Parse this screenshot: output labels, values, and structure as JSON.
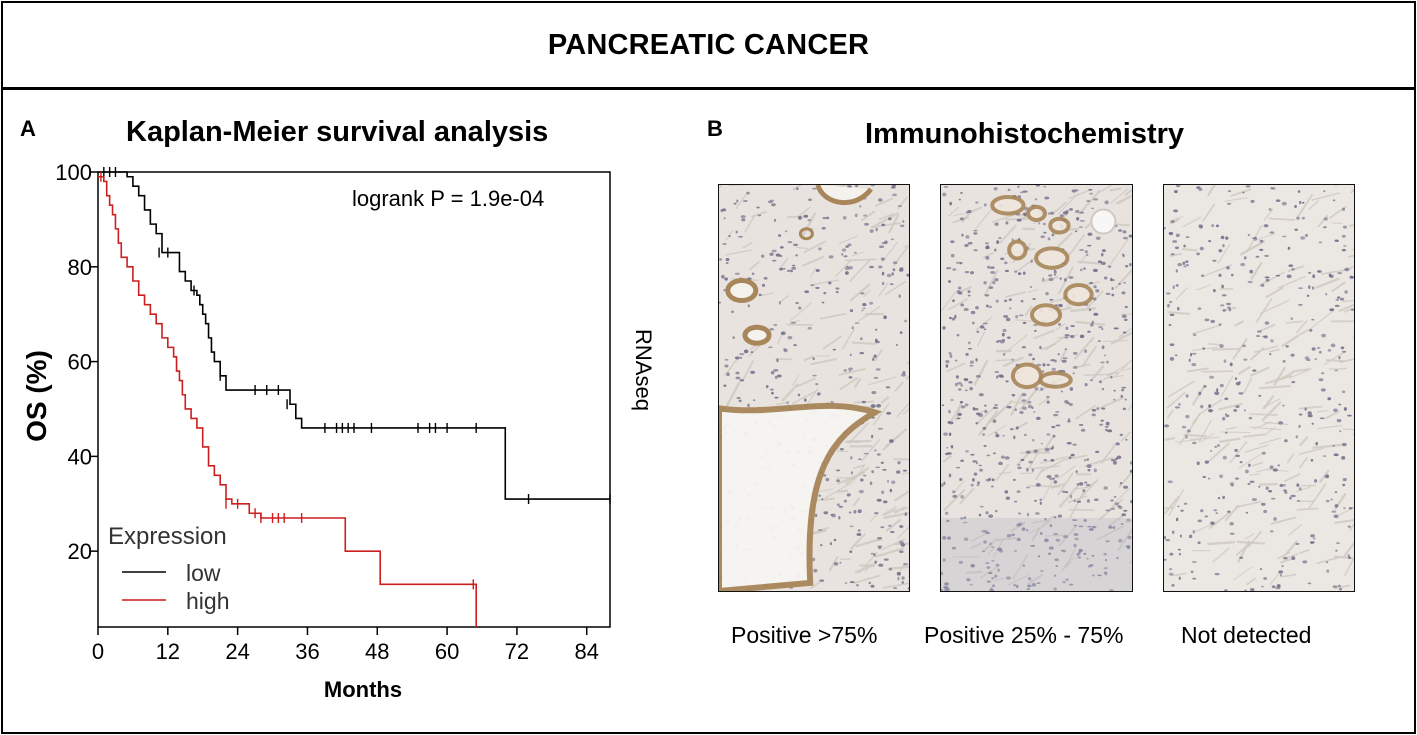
{
  "header": {
    "title": "PANCREATIC CANCER"
  },
  "panel_a": {
    "label": "A",
    "title": "Kaplan-Meier survival analysis"
  },
  "panel_b": {
    "label": "B",
    "title": "Immunohistochemistry",
    "images": [
      {
        "caption": "Positive >75%",
        "stain": "strong"
      },
      {
        "caption": "Positive 25% - 75%",
        "stain": "moderate"
      },
      {
        "caption": "Not detected",
        "stain": "none"
      }
    ]
  },
  "colors": {
    "low": "#000000",
    "high": "#cc1f1f",
    "stain": "#a8865a"
  },
  "chart_data": {
    "type": "line",
    "subtype": "kaplan-meier",
    "title": "Kaplan-Meier survival analysis",
    "xlabel": "Months",
    "ylabel": "OS (%)",
    "side_label": "RNAseq",
    "annotation": "logrank P = 1.9e-04",
    "xlim": [
      0,
      88
    ],
    "ylim": [
      4,
      100
    ],
    "xticks": [
      0,
      12,
      24,
      36,
      48,
      60,
      72,
      84
    ],
    "yticks": [
      20,
      40,
      60,
      80,
      100
    ],
    "legend": {
      "title": "Expression",
      "position": "bottom-left"
    },
    "series": [
      {
        "name": "low",
        "color": "#000000",
        "steps": [
          [
            0,
            100
          ],
          [
            5,
            99
          ],
          [
            6,
            97
          ],
          [
            7,
            95
          ],
          [
            8,
            92
          ],
          [
            9,
            89
          ],
          [
            10,
            87
          ],
          [
            11,
            83
          ],
          [
            13,
            83
          ],
          [
            14,
            79
          ],
          [
            15,
            77
          ],
          [
            16,
            75
          ],
          [
            17,
            74
          ],
          [
            17.5,
            72
          ],
          [
            18,
            70
          ],
          [
            18.5,
            68
          ],
          [
            19,
            65
          ],
          [
            19.5,
            62
          ],
          [
            20,
            60
          ],
          [
            21,
            57
          ],
          [
            22,
            54
          ],
          [
            32,
            54
          ],
          [
            33,
            51
          ],
          [
            34,
            48
          ],
          [
            35,
            46
          ],
          [
            69,
            46
          ],
          [
            70,
            31
          ],
          [
            88,
            31
          ]
        ],
        "censored": [
          [
            1,
            100
          ],
          [
            2,
            100
          ],
          [
            3,
            100
          ],
          [
            10.5,
            83
          ],
          [
            12,
            83
          ],
          [
            16.5,
            75
          ],
          [
            21,
            57
          ],
          [
            27,
            54
          ],
          [
            29,
            54
          ],
          [
            31,
            54
          ],
          [
            32.5,
            51
          ],
          [
            39,
            46
          ],
          [
            41,
            46
          ],
          [
            42,
            46
          ],
          [
            43,
            46
          ],
          [
            44,
            46
          ],
          [
            47,
            46
          ],
          [
            55,
            46
          ],
          [
            57,
            46
          ],
          [
            58,
            46
          ],
          [
            60,
            46
          ],
          [
            65,
            46
          ],
          [
            74,
            31
          ],
          [
            88,
            31
          ]
        ]
      },
      {
        "name": "high",
        "color": "#cc1f1f",
        "steps": [
          [
            0,
            99
          ],
          [
            1,
            98
          ],
          [
            1.5,
            95
          ],
          [
            2,
            93
          ],
          [
            2.5,
            91
          ],
          [
            3,
            88
          ],
          [
            3.5,
            85
          ],
          [
            4,
            82
          ],
          [
            5,
            80
          ],
          [
            6,
            77
          ],
          [
            7,
            74
          ],
          [
            8,
            72
          ],
          [
            9,
            70
          ],
          [
            10,
            68
          ],
          [
            11,
            65
          ],
          [
            12,
            63
          ],
          [
            13,
            61
          ],
          [
            13.5,
            58
          ],
          [
            14,
            56
          ],
          [
            14.5,
            53
          ],
          [
            15,
            50
          ],
          [
            16,
            48
          ],
          [
            17,
            46
          ],
          [
            18,
            42
          ],
          [
            19,
            38
          ],
          [
            20,
            36
          ],
          [
            21,
            34
          ],
          [
            22,
            31
          ],
          [
            23,
            30
          ],
          [
            26,
            28
          ],
          [
            28,
            27
          ],
          [
            42,
            27
          ],
          [
            42.5,
            20
          ],
          [
            48,
            20
          ],
          [
            48.5,
            13
          ],
          [
            65,
            13
          ],
          [
            65,
            4
          ]
        ],
        "censored": [
          [
            0.5,
            99
          ],
          [
            22,
            30
          ],
          [
            24,
            30
          ],
          [
            27,
            28
          ],
          [
            28,
            27
          ],
          [
            30,
            27
          ],
          [
            31,
            27
          ],
          [
            32,
            27
          ],
          [
            35,
            27
          ],
          [
            64.5,
            13
          ]
        ]
      }
    ]
  }
}
